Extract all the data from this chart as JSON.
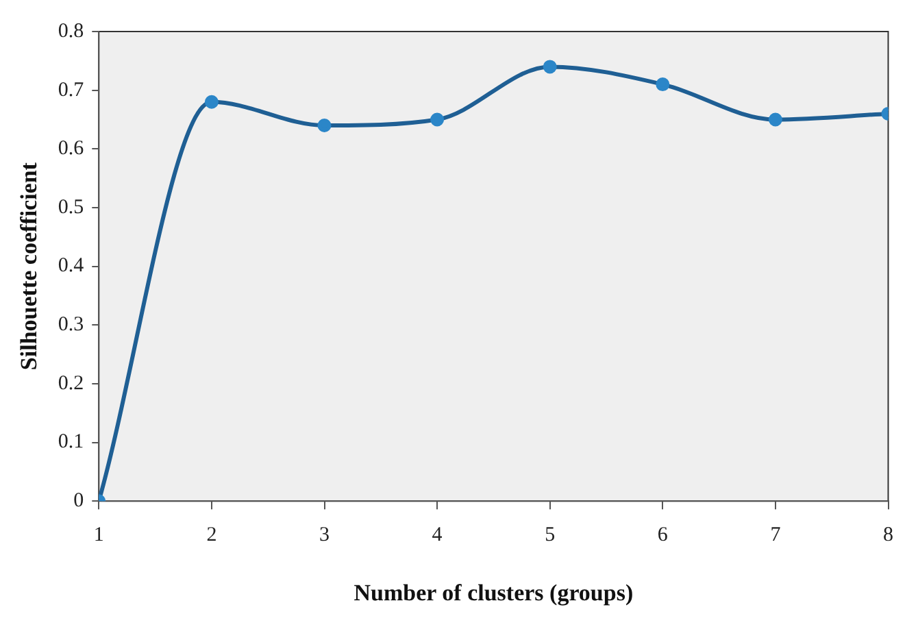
{
  "chart_data": {
    "type": "line",
    "xlabel": "Number of clusters (groups)",
    "ylabel": "Silhouette coefficient",
    "x": [
      1,
      2,
      3,
      4,
      5,
      6,
      7,
      8
    ],
    "series": [
      {
        "color": "#1f5f94",
        "values": [
          0,
          0.68,
          0.64,
          0.65,
          0.74,
          0.71,
          0.65,
          0.66
        ]
      }
    ],
    "xlim": [
      1,
      8
    ],
    "xticks": [
      1,
      2,
      3,
      4,
      5,
      6,
      7,
      8
    ],
    "ylim": [
      0,
      0.8
    ],
    "yticks": [
      0,
      0.1,
      0.2,
      0.3,
      0.4,
      0.5,
      0.6,
      0.7,
      0.8
    ],
    "grid": false,
    "legend": false,
    "marker": "circle",
    "line_style": "solid"
  }
}
